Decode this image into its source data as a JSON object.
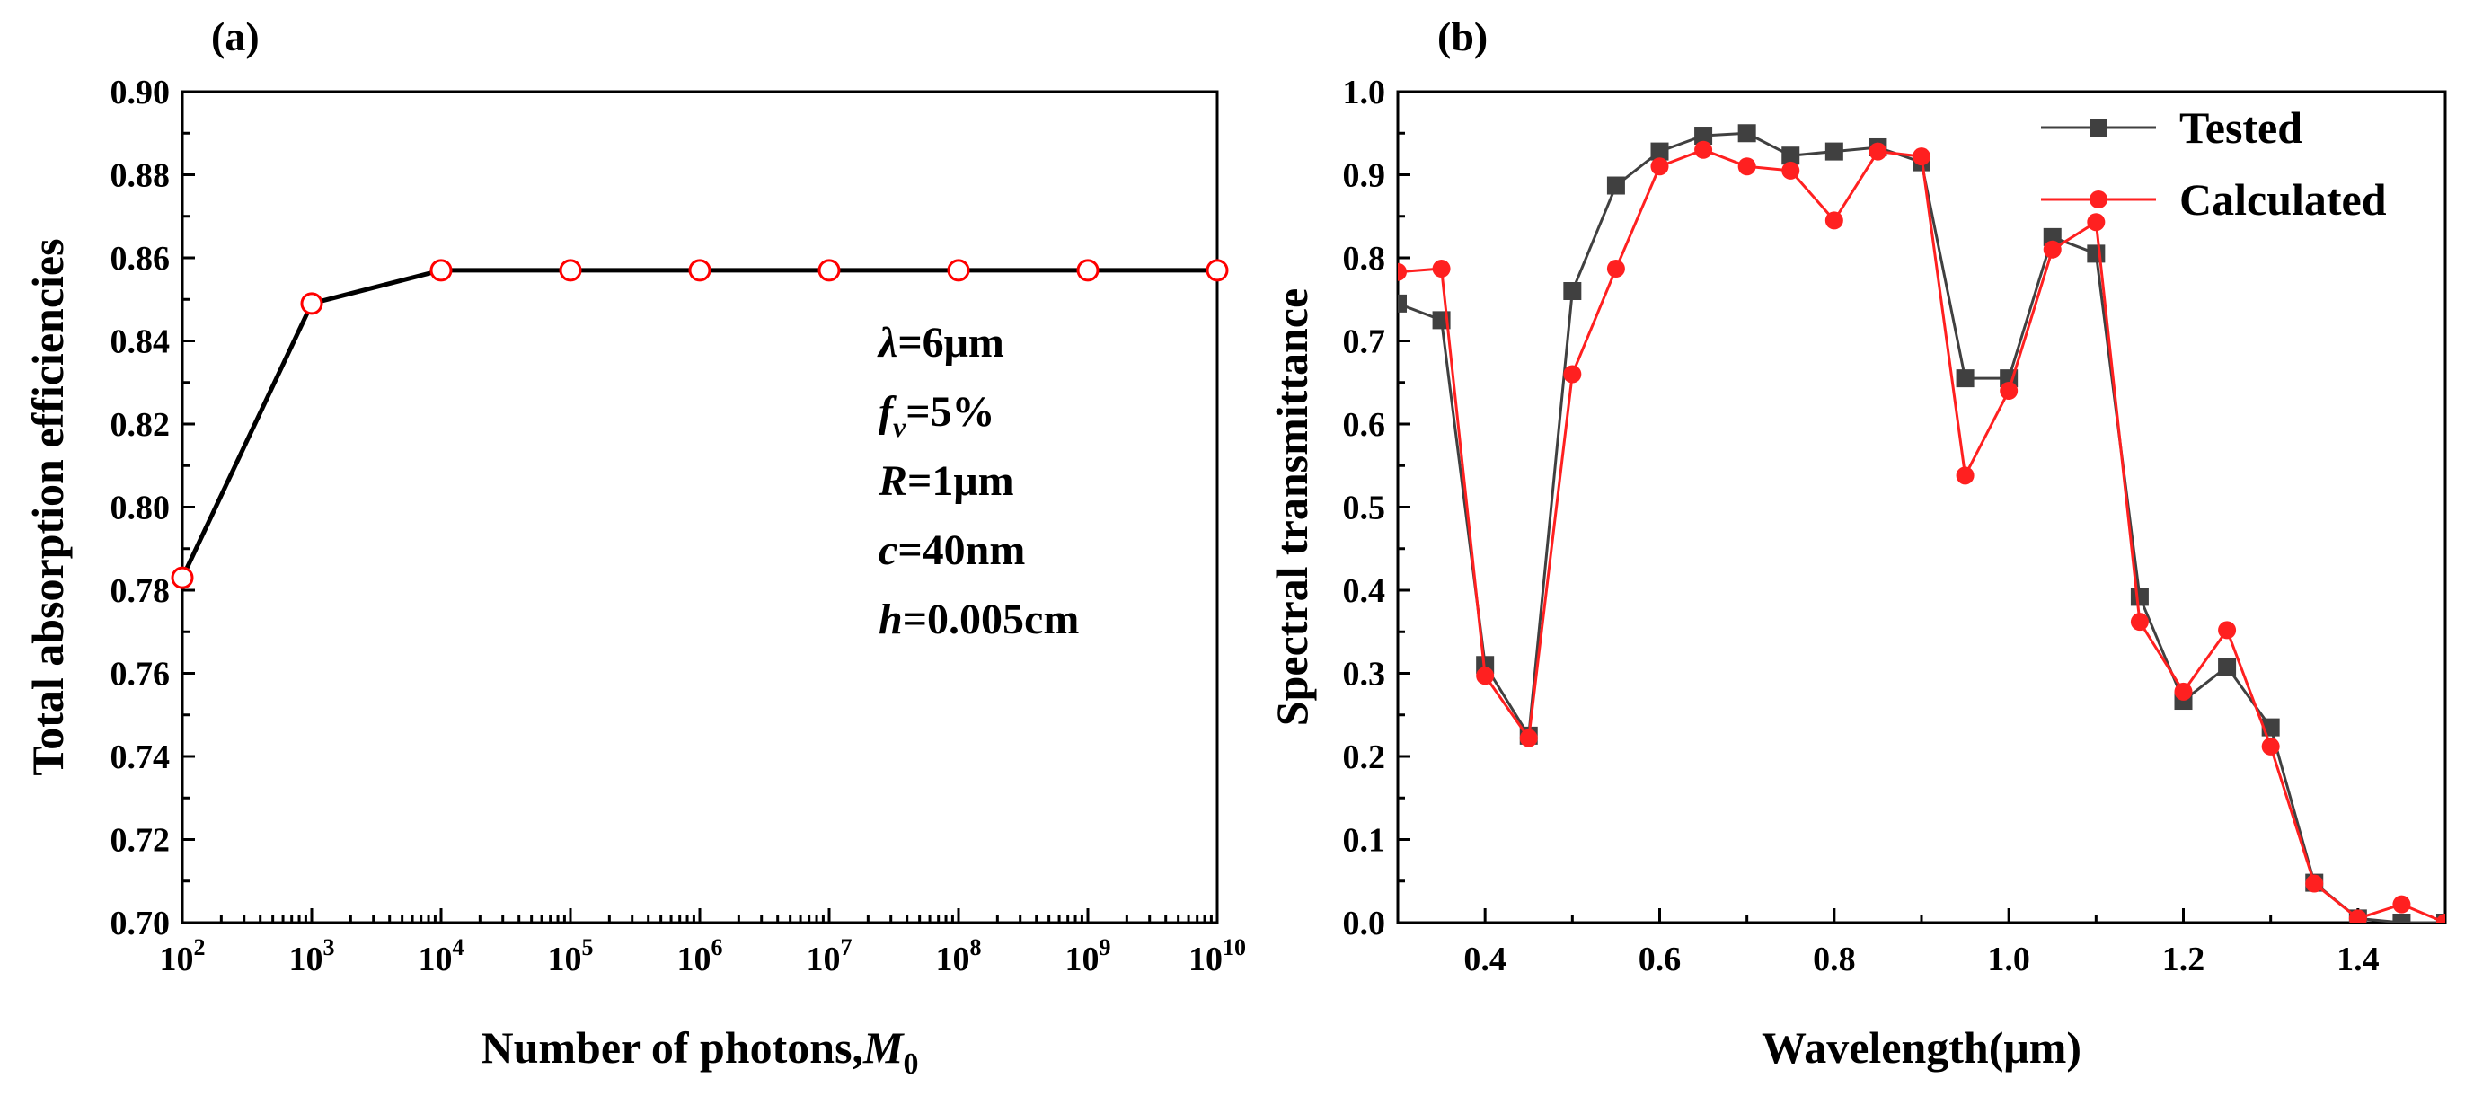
{
  "chart_data": [
    {
      "type": "line",
      "panel_label": "(a)",
      "xlabel": "Number of photons,",
      "xlabel_symbol": "M",
      "xlabel_sub": "0",
      "ylabel": "Total absorption efficiencies",
      "x_scale": "log",
      "xlim": [
        100,
        10000000000
      ],
      "ylim": [
        0.7,
        0.9
      ],
      "x_tick_base": "10",
      "x_tick_exponents": [
        "2",
        "3",
        "4",
        "5",
        "6",
        "7",
        "8",
        "9",
        "10"
      ],
      "y_tick_labels": [
        "0.70",
        "0.72",
        "0.74",
        "0.76",
        "0.78",
        "0.80",
        "0.82",
        "0.84",
        "0.86",
        "0.88",
        "0.90"
      ],
      "series": [
        {
          "line_color": "#000000",
          "marker_color": "#ff0000",
          "marker": "open-circle",
          "x": [
            100,
            1000,
            10000,
            100000,
            1000000,
            10000000,
            100000000,
            1000000000,
            10000000000
          ],
          "y": [
            0.783,
            0.849,
            0.857,
            0.857,
            0.857,
            0.857,
            0.857,
            0.857,
            0.857
          ]
        }
      ],
      "annotations": [
        {
          "symbol": "λ",
          "sub": "",
          "text": "=6μm"
        },
        {
          "symbol": "f",
          "sub": "v",
          "text": "=5%"
        },
        {
          "symbol": "R",
          "sub": "",
          "text": "=1μm"
        },
        {
          "symbol": "c",
          "sub": "",
          "text": "=40nm"
        },
        {
          "symbol": "h",
          "sub": "",
          "text": "=0.005cm"
        }
      ],
      "grid": false
    },
    {
      "type": "line",
      "panel_label": "(b)",
      "xlabel": "Wavelength(μm)",
      "ylabel": "Spectral transmittance",
      "xlim": [
        0.3,
        1.5
      ],
      "ylim": [
        0.0,
        1.0
      ],
      "x_ticks": [
        0.4,
        0.6,
        0.8,
        1.0,
        1.2,
        1.4
      ],
      "x_tick_labels": [
        "0.4",
        "0.6",
        "0.8",
        "1.0",
        "1.2",
        "1.4"
      ],
      "y_ticks": [
        0.0,
        0.1,
        0.2,
        0.3,
        0.4,
        0.5,
        0.6,
        0.7,
        0.8,
        0.9,
        1.0
      ],
      "y_tick_labels": [
        "0.0",
        "0.1",
        "0.2",
        "0.3",
        "0.4",
        "0.5",
        "0.6",
        "0.7",
        "0.8",
        "0.9",
        "1.0"
      ],
      "x": [
        0.3,
        0.35,
        0.4,
        0.45,
        0.5,
        0.55,
        0.6,
        0.65,
        0.7,
        0.75,
        0.8,
        0.85,
        0.9,
        0.95,
        1.0,
        1.05,
        1.1,
        1.15,
        1.2,
        1.25,
        1.3,
        1.35,
        1.4,
        1.45,
        1.5
      ],
      "series": [
        {
          "name": "Tested",
          "color": "#404040",
          "marker": "square",
          "values": [
            0.745,
            0.725,
            0.31,
            0.225,
            0.76,
            0.887,
            0.928,
            0.947,
            0.95,
            0.923,
            0.928,
            0.933,
            0.915,
            0.655,
            0.655,
            0.825,
            0.805,
            0.392,
            0.267,
            0.308,
            0.235,
            0.048,
            0.005,
            0.0,
            0.0
          ]
        },
        {
          "name": "Calculated",
          "color": "#ff2020",
          "marker": "circle",
          "values": [
            0.783,
            0.787,
            0.297,
            0.222,
            0.66,
            0.787,
            0.91,
            0.93,
            0.91,
            0.905,
            0.845,
            0.928,
            0.922,
            0.538,
            0.64,
            0.81,
            0.843,
            0.362,
            0.278,
            0.352,
            0.212,
            0.047,
            0.005,
            0.022,
            0.0
          ]
        }
      ],
      "legend_position": "top-right",
      "grid": false
    }
  ]
}
